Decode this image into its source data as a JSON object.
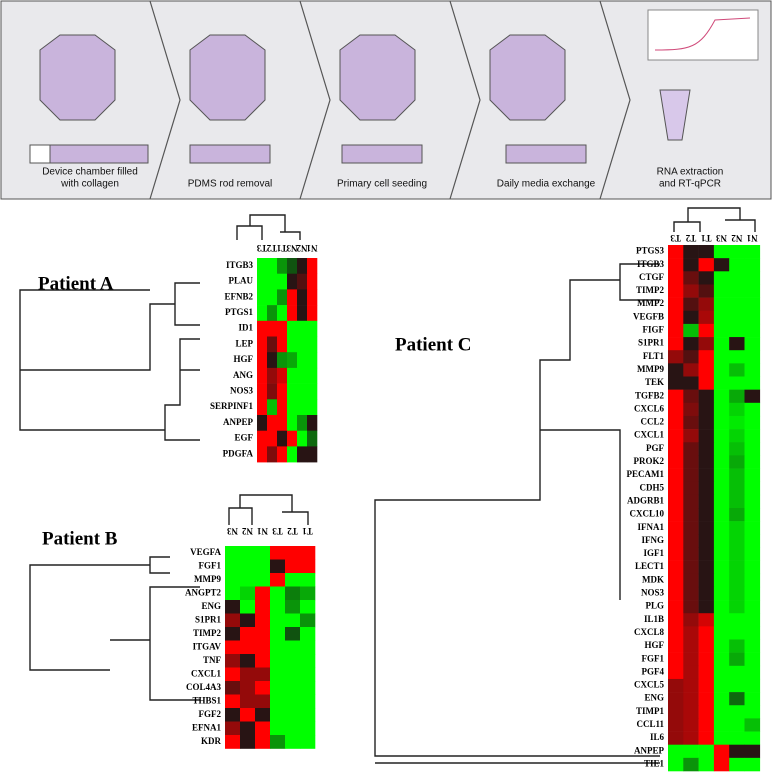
{
  "workflow": {
    "steps": [
      "Device chamber filled",
      "with collagen",
      "PDMS rod removal",
      "Primary cell seeding",
      "Daily media exchange",
      "RNA extraction",
      "and RT-qPCR"
    ]
  },
  "panels": [
    {
      "title": "Patient A",
      "columns": [
        "T3",
        "T2",
        "T1",
        "N3",
        "N2",
        "N1"
      ],
      "genes": [
        "ITGB3",
        "PLAU",
        "EFNB2",
        "PTGS1",
        "ID1",
        "LEP",
        "HGF",
        "ANG",
        "NOS3",
        "SERPINF1",
        "ANPEP",
        "EGF",
        "PDGFA"
      ],
      "values": [
        [
          -1,
          -1,
          -0.5,
          -0.2,
          0,
          1
        ],
        [
          -1,
          -1,
          -1,
          0,
          0.2,
          1
        ],
        [
          -1,
          -1,
          -0.5,
          1,
          0,
          1
        ],
        [
          -1,
          -0.5,
          -1,
          1,
          0,
          1
        ],
        [
          1,
          1,
          1,
          -1,
          -1,
          -1
        ],
        [
          1,
          0.3,
          1,
          -1,
          -1,
          -1
        ],
        [
          1,
          0,
          -0.5,
          -0.6,
          -1,
          -1
        ],
        [
          1,
          0.5,
          0.8,
          -1,
          -1,
          -1
        ],
        [
          1,
          0.4,
          1,
          -1,
          -1,
          -1
        ],
        [
          1,
          -0.7,
          1,
          -1,
          -1,
          -1
        ],
        [
          0,
          1,
          1,
          -1,
          -0.5,
          0
        ],
        [
          1,
          1,
          0,
          1,
          -1,
          -0.3
        ],
        [
          1,
          0.4,
          1,
          -1,
          0,
          0
        ]
      ]
    },
    {
      "title": "Patient B",
      "columns": [
        "N3",
        "N2",
        "N1",
        "T3",
        "T2",
        "T1"
      ],
      "genes": [
        "VEGFA",
        "FGF1",
        "MMP9",
        "ANGPT2",
        "ENG",
        "S1PR1",
        "TIMP2",
        "ITGAV",
        "TNF",
        "CXCL1",
        "COL4A3",
        "THBS1",
        "FGF2",
        "EFNA1",
        "KDR"
      ],
      "values": [
        [
          -1,
          -1,
          -1,
          1,
          1,
          1
        ],
        [
          -1,
          -1,
          -1,
          0,
          1,
          1
        ],
        [
          -1,
          -1,
          -1,
          1,
          -1,
          -1
        ],
        [
          -1,
          -0.8,
          1,
          -1,
          -0.4,
          -0.6
        ],
        [
          0,
          -1,
          1,
          -1,
          -0.5,
          -1
        ],
        [
          0.5,
          0,
          1,
          -1,
          -1,
          -0.5
        ],
        [
          0,
          1,
          1,
          -1,
          -0.2,
          -1
        ],
        [
          1,
          1,
          1,
          -1,
          -1,
          -1
        ],
        [
          0.5,
          0,
          1,
          -1,
          -1,
          -1
        ],
        [
          1,
          0.5,
          0.5,
          -1,
          -1,
          -1
        ],
        [
          0.3,
          0.5,
          1,
          -1,
          -1,
          -1
        ],
        [
          1,
          0.5,
          0.5,
          -1,
          -1,
          -1
        ],
        [
          0,
          1,
          0,
          -1,
          -1,
          -1
        ],
        [
          0.5,
          0,
          1,
          -1,
          -1,
          -1
        ],
        [
          1,
          0,
          1,
          -0.5,
          -1,
          -1
        ]
      ]
    },
    {
      "title": "Patient C",
      "columns": [
        "T3",
        "T2",
        "T1",
        "N3",
        "N2",
        "N1"
      ],
      "genes": [
        "PTGS3",
        "ITGB3",
        "CTGF",
        "TIMP2",
        "MMP2",
        "VEGFB",
        "FIGF",
        "S1PR1",
        "FLT1",
        "MMP9",
        "TEK",
        "TGFB2",
        "CXCL6",
        "CCL2",
        "CXCL1",
        "PGF",
        "PROK2",
        "PECAM1",
        "CDH5",
        "ADGRB1",
        "CXCL10",
        "IFNA1",
        "IFNG",
        "IGF1",
        "LECT1",
        "MDK",
        "NOS3",
        "PLG",
        "IL1B",
        "CXCL8",
        "HGF",
        "FGF1",
        "PGF4",
        "CXCL5",
        "ENG",
        "TIMP1",
        "CCL11",
        "IL6",
        "ANPEP",
        "TIE1"
      ],
      "values": [
        [
          1,
          0,
          0,
          -1,
          -1,
          -1
        ],
        [
          1,
          0,
          1,
          0,
          -1,
          -1
        ],
        [
          1,
          0.3,
          0,
          -1,
          -1,
          -1
        ],
        [
          1,
          0.5,
          0.2,
          -1,
          -1,
          -1
        ],
        [
          1,
          0.2,
          0.5,
          -1,
          -1,
          -1
        ],
        [
          1,
          0,
          0.6,
          -1,
          -1,
          -1
        ],
        [
          1,
          -0.7,
          1,
          -1,
          -1,
          -1
        ],
        [
          1,
          0,
          0.5,
          -1,
          0,
          -1
        ],
        [
          0.5,
          0.2,
          1,
          -1,
          -1,
          -1
        ],
        [
          0,
          0.5,
          1,
          -1,
          -0.7,
          -1
        ],
        [
          0,
          0,
          1,
          -1,
          -1,
          -1
        ],
        [
          1,
          0.3,
          0,
          -1,
          -0.6,
          0
        ],
        [
          1,
          0.4,
          0,
          -1,
          -0.8,
          -1
        ],
        [
          1,
          0.3,
          0,
          -1,
          -0.9,
          -1
        ],
        [
          1,
          0.5,
          0,
          -1,
          -0.8,
          -1
        ],
        [
          1,
          0.3,
          0,
          -1,
          -0.7,
          -1
        ],
        [
          1,
          0.3,
          0,
          -1,
          -0.6,
          -1
        ],
        [
          1,
          0.3,
          0,
          -1,
          -0.7,
          -1
        ],
        [
          1,
          0.3,
          0,
          -1,
          -0.7,
          -1
        ],
        [
          1,
          0.3,
          0,
          -1,
          -0.7,
          -1
        ],
        [
          1,
          0.3,
          0,
          -1,
          -0.6,
          -1
        ],
        [
          1,
          0.3,
          0,
          -1,
          -0.8,
          -1
        ],
        [
          1,
          0.3,
          0,
          -1,
          -0.8,
          -1
        ],
        [
          1,
          0.3,
          0,
          -1,
          -0.8,
          -1
        ],
        [
          1,
          0.3,
          0,
          -1,
          -0.8,
          -1
        ],
        [
          1,
          0.3,
          0,
          -1,
          -0.8,
          -1
        ],
        [
          1,
          0.3,
          0,
          -1,
          -0.8,
          -1
        ],
        [
          1,
          0.3,
          0,
          -1,
          -0.8,
          -1
        ],
        [
          1,
          0.5,
          0.8,
          -1,
          -1,
          -1
        ],
        [
          1,
          0.6,
          1,
          -1,
          -1,
          -1
        ],
        [
          1,
          0.6,
          1,
          -1,
          -0.7,
          -1
        ],
        [
          1,
          0.6,
          1,
          -1,
          -0.6,
          -1
        ],
        [
          1,
          0.6,
          1,
          -1,
          -1,
          -1
        ],
        [
          0.5,
          0.6,
          1,
          -1,
          -1,
          -1
        ],
        [
          0.5,
          0.6,
          1,
          -1,
          -0.3,
          -1
        ],
        [
          0.5,
          0.6,
          1,
          -1,
          -1,
          -1
        ],
        [
          0.5,
          0.6,
          1,
          -1,
          -1,
          -0.7
        ],
        [
          0.5,
          0.6,
          1,
          -1,
          -1,
          -1
        ],
        [
          -1,
          -1,
          -1,
          1,
          0,
          0
        ],
        [
          -1,
          -0.5,
          -1,
          1,
          -1,
          -1
        ]
      ]
    }
  ]
}
